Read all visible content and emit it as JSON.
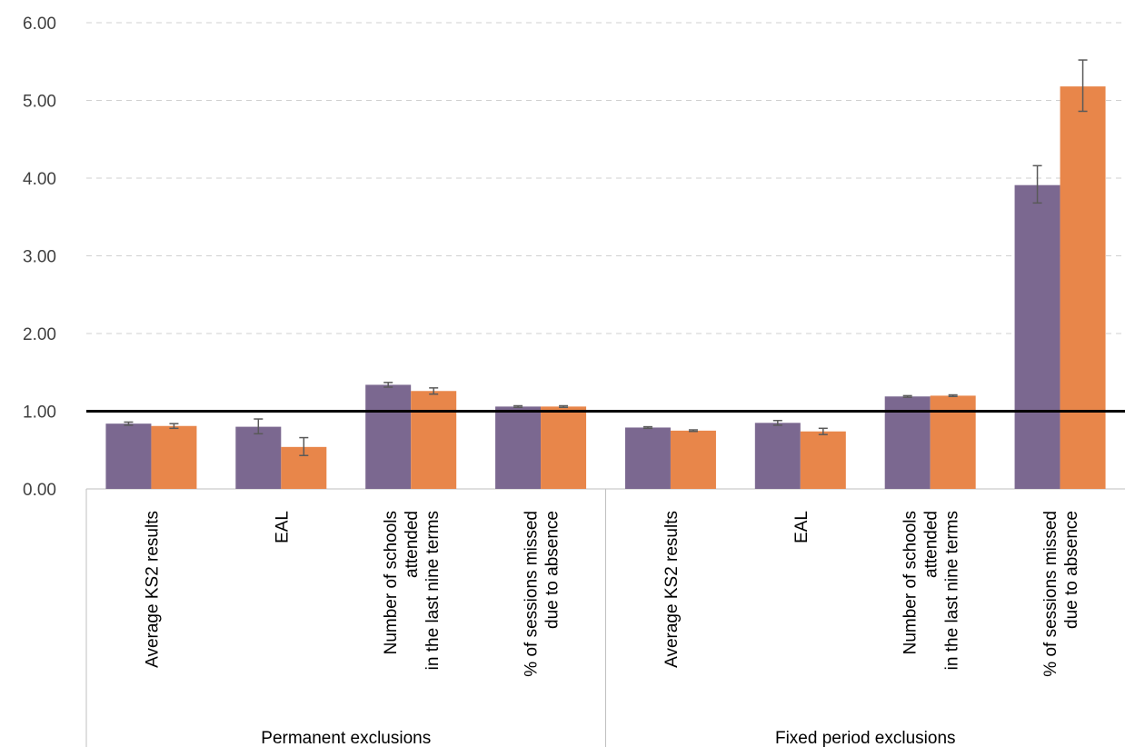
{
  "chart_data": {
    "type": "bar",
    "title": "",
    "xlabel": "",
    "ylabel": "",
    "ylim": [
      0,
      6
    ],
    "y_ticks": [
      "0.00",
      "1.00",
      "2.00",
      "3.00",
      "4.00",
      "5.00",
      "6.00"
    ],
    "grid": "horizontal dashed",
    "reference_line": 1.0,
    "groups": [
      {
        "label": "Permanent exclusions",
        "categories": [
          [
            "Average KS2 results"
          ],
          [
            "EAL"
          ],
          [
            "Number of schools",
            "attended",
            "in the last nine terms"
          ],
          [
            "% of sessions missed",
            "due to absence"
          ]
        ]
      },
      {
        "label": "Fixed period exclusions",
        "categories": [
          [
            "Average KS2 results"
          ],
          [
            "EAL"
          ],
          [
            "Number of schools",
            "attended",
            "in the last nine terms"
          ],
          [
            "% of sessions missed",
            "due to absence"
          ]
        ]
      }
    ],
    "series": [
      {
        "color": "#7b6890",
        "values": [
          0.84,
          0.8,
          1.34,
          1.06,
          0.79,
          0.85,
          1.19,
          3.91
        ],
        "err_low": [
          0.82,
          0.71,
          1.31,
          1.05,
          0.78,
          0.82,
          1.18,
          3.68
        ],
        "err_high": [
          0.86,
          0.9,
          1.37,
          1.07,
          0.8,
          0.88,
          1.2,
          4.16
        ]
      },
      {
        "color": "#e8864a",
        "values": [
          0.81,
          0.54,
          1.26,
          1.06,
          0.75,
          0.74,
          1.2,
          5.18
        ],
        "err_low": [
          0.78,
          0.43,
          1.22,
          1.05,
          0.74,
          0.7,
          1.19,
          4.86
        ],
        "err_high": [
          0.84,
          0.66,
          1.3,
          1.07,
          0.76,
          0.78,
          1.21,
          5.52
        ]
      }
    ]
  }
}
